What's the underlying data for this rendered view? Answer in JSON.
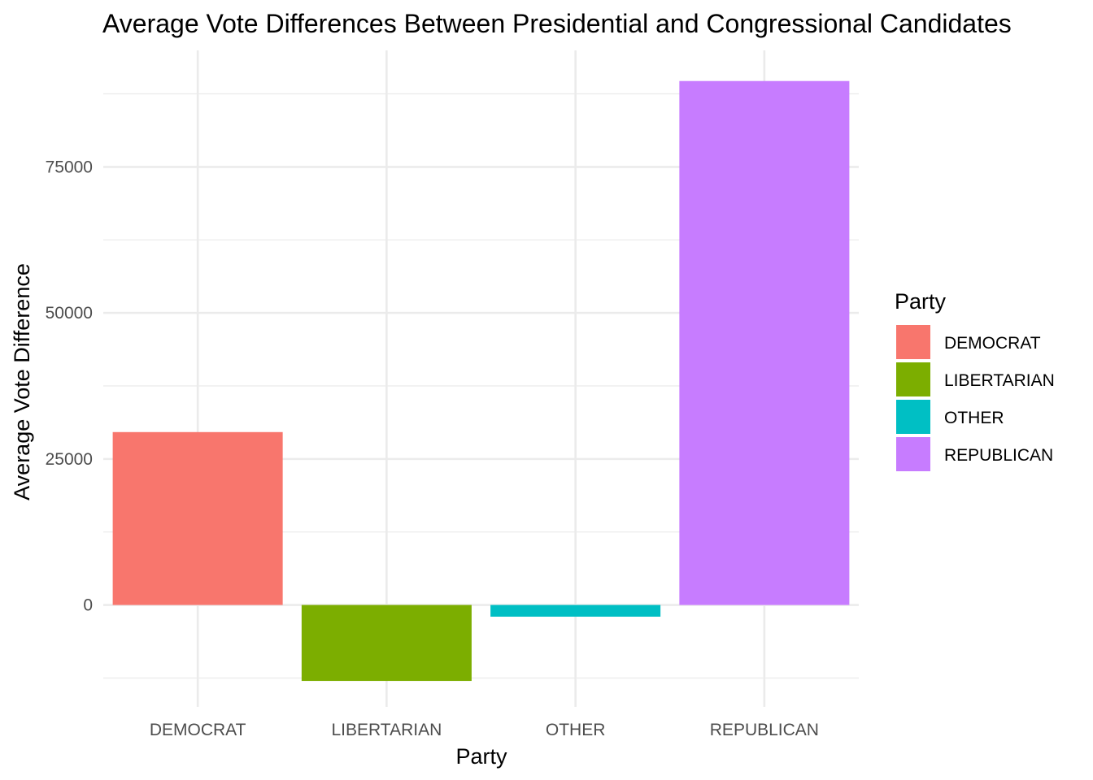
{
  "chart_data": {
    "type": "bar",
    "title": "Average Vote Differences Between Presidential and Congressional Candidates",
    "xlabel": "Party",
    "ylabel": "Average Vote Difference",
    "categories": [
      "DEMOCRAT",
      "LIBERTARIAN",
      "OTHER",
      "REPUBLICAN"
    ],
    "values": [
      29600,
      -13000,
      -2000,
      89700
    ],
    "colors": [
      "#F8766D",
      "#7CAE00",
      "#00BFC4",
      "#C77CFF"
    ],
    "ylim": [
      -18000,
      95000
    ],
    "y_ticks": [
      0,
      25000,
      50000,
      75000
    ],
    "y_tick_labels": [
      "0",
      "25000",
      "50000",
      "75000"
    ],
    "y_minor_ticks": [
      -12500,
      12500,
      37500,
      62500,
      87500
    ],
    "grid": true,
    "legend": {
      "title": "Party",
      "placement": "right",
      "entries": [
        "DEMOCRAT",
        "LIBERTARIAN",
        "OTHER",
        "REPUBLICAN"
      ]
    }
  }
}
